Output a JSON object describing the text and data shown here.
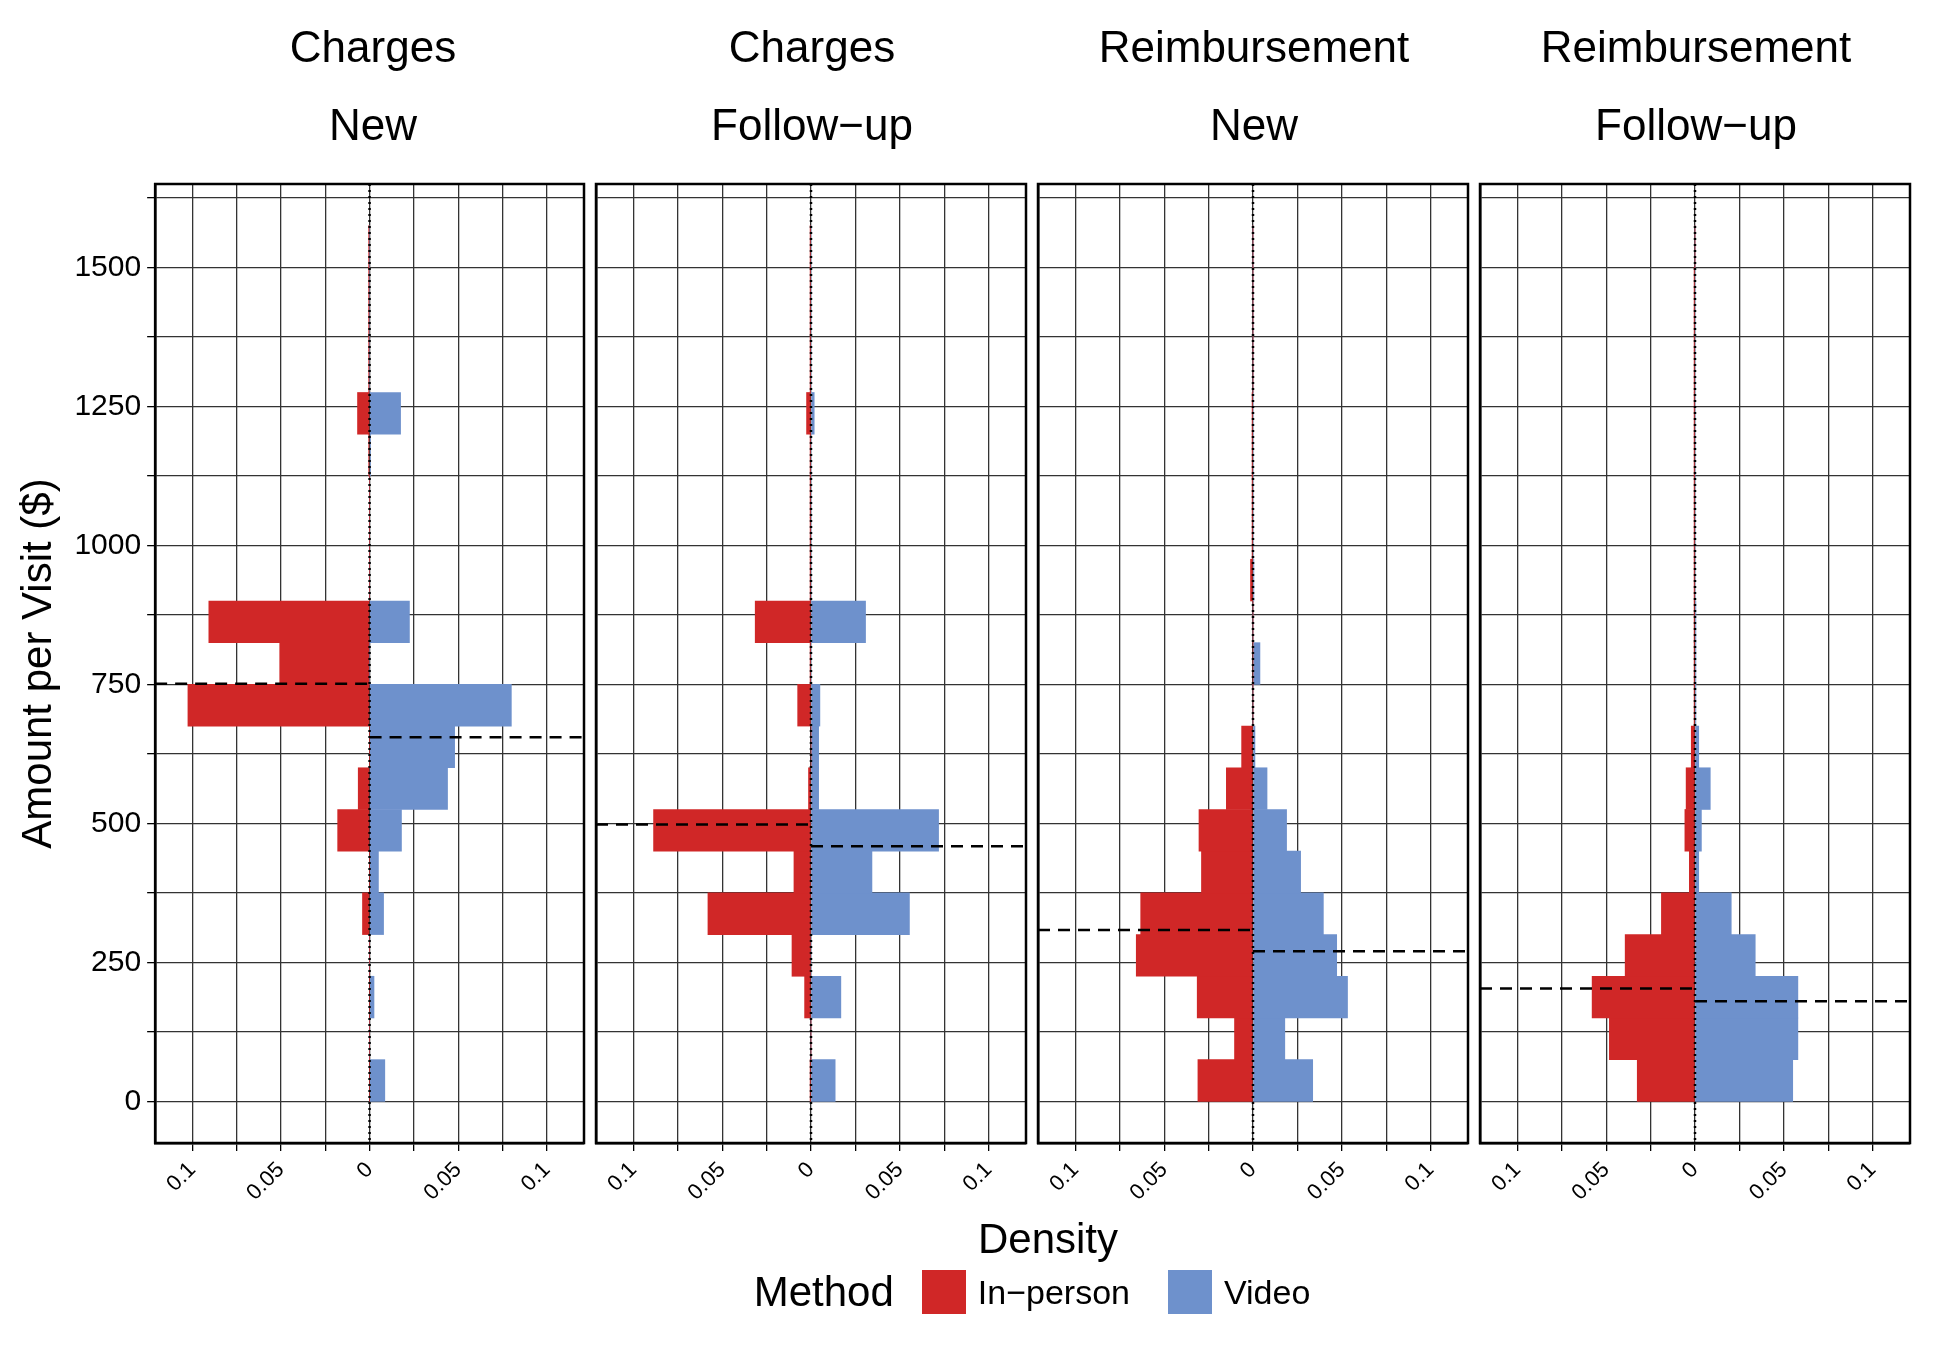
{
  "chart_data": [
    {
      "type": "histogram",
      "title": "Charges",
      "subtitle": "New",
      "orientation": "horizontal",
      "ylabel": "Amount per Visit ($)",
      "legend": "bottom",
      "legend_title": "Method",
      "grid": true,
      "bins": [
        0,
        75,
        150,
        225,
        300,
        375,
        450,
        525,
        600,
        675,
        750,
        825,
        900,
        975,
        1050,
        1125,
        1200,
        1275,
        1350,
        1425,
        1500,
        1575
      ],
      "xlim": [
        -0.121,
        0.121
      ],
      "xticks": [
        {
          "value": -0.1,
          "label": "0.1"
        },
        {
          "value": -0.075,
          "label": null
        },
        {
          "value": -0.05,
          "label": "0.05"
        },
        {
          "value": -0.025,
          "label": null
        },
        0,
        {
          "value": 0.025,
          "label": null
        },
        0.05,
        {
          "value": 0.075,
          "label": null
        },
        0.1
      ],
      "ylim": [
        -75,
        1650
      ],
      "yticks": [
        0,
        {
          "value": 125,
          "label": null
        },
        250,
        {
          "value": 375,
          "label": null
        },
        500,
        {
          "value": 625,
          "label": null
        },
        750,
        {
          "value": 875,
          "label": null
        },
        1000,
        {
          "value": 1125,
          "label": null
        },
        1250,
        {
          "value": 1375,
          "label": null
        },
        1500,
        {
          "value": 1625,
          "label": null
        }
      ],
      "series": [
        {
          "name": "In−person",
          "color": "#d02727",
          "values": [
            0,
            0,
            0,
            0,
            -0.004,
            0,
            -0.018,
            -0.0064,
            0,
            -0.1025,
            -0.0507,
            -0.0907,
            0,
            0,
            0,
            -0.0005,
            -0.0068,
            -0.0005,
            -0.0005,
            -0.0005,
            -0.0005
          ]
        },
        {
          "name": "Video",
          "color": "#6e91cc",
          "values": [
            0.0086,
            0,
            0.0025,
            0,
            0.0079,
            0.005,
            0.018,
            0.044,
            0.048,
            0.08,
            0,
            0.0225,
            0,
            0,
            0,
            0.0005,
            0.0175,
            0,
            0,
            0,
            0
          ]
        }
      ],
      "ref_lines": [
        {
          "axis": "y",
          "value": 751,
          "line_style": "dashed",
          "color": "#000000"
        },
        {
          "axis": "y",
          "value": 655,
          "line_style": "dashed",
          "color": "#000000"
        },
        {
          "axis": "x",
          "value": 0,
          "line_style": "dotted",
          "color": "#000000"
        }
      ]
    },
    {
      "type": "histogram",
      "title": "Charges",
      "subtitle": "Follow−up",
      "orientation": "horizontal",
      "xlabel": "Density",
      "grid": true,
      "tick_labels": "x",
      "bins": [
        0,
        75,
        150,
        225,
        300,
        375,
        450,
        525,
        600,
        675,
        750,
        825,
        900,
        975,
        1050,
        1125,
        1200,
        1275,
        1350,
        1425,
        1500,
        1575
      ],
      "xlim": [
        -0.121,
        0.121
      ],
      "xticks": [
        {
          "value": -0.1,
          "label": "0.1"
        },
        {
          "value": -0.075,
          "label": null
        },
        {
          "value": -0.05,
          "label": "0.05"
        },
        {
          "value": -0.025,
          "label": null
        },
        0,
        {
          "value": 0.025,
          "label": null
        },
        0.05,
        {
          "value": 0.075,
          "label": null
        },
        0.1
      ],
      "ylim": [
        -75,
        1650
      ],
      "yticks": [
        0,
        {
          "value": 125,
          "label": null
        },
        250,
        {
          "value": 375,
          "label": null
        },
        500,
        {
          "value": 625,
          "label": null
        },
        750,
        {
          "value": 875,
          "label": null
        },
        1000,
        {
          "value": 1125,
          "label": null
        },
        1250,
        {
          "value": 1375,
          "label": null
        },
        1500,
        {
          "value": 1625,
          "label": null
        }
      ],
      "series": [
        {
          "color": "#d02727",
          "values": [
            -0.0005,
            0,
            -0.0036,
            -0.0107,
            -0.058,
            -0.0096,
            -0.0886,
            -0.0014,
            0,
            -0.0075,
            -0.0005,
            -0.0314,
            -0.0005,
            -0.0005,
            -0.0005,
            -0.0005,
            -0.0025,
            -0.0005,
            -0.0005,
            -0.0005,
            -0.0005
          ]
        },
        {
          "color": "#6e91cc",
          "values": [
            0.0136,
            0,
            0.0168,
            0,
            0.0554,
            0.0343,
            0.0718,
            0.0043,
            0.0043,
            0.005,
            0,
            0.0307,
            0,
            0,
            0,
            0,
            0.0018,
            0,
            0,
            0,
            0
          ]
        }
      ],
      "ref_lines": [
        {
          "axis": "y",
          "value": 498,
          "line_style": "dashed",
          "color": "#000000"
        },
        {
          "axis": "y",
          "value": 459,
          "line_style": "dashed",
          "color": "#000000"
        },
        {
          "axis": "x",
          "value": 0,
          "line_style": "dotted",
          "color": "#000000"
        }
      ]
    },
    {
      "type": "histogram",
      "title": "Reimbursement",
      "subtitle": "New",
      "orientation": "horizontal",
      "grid": true,
      "tick_labels": "x",
      "bins": [
        0,
        75,
        150,
        225,
        300,
        375,
        450,
        525,
        600,
        675,
        750,
        825,
        900,
        975,
        1050,
        1125,
        1200,
        1275,
        1350,
        1425,
        1500,
        1575
      ],
      "xlim": [
        -0.121,
        0.121
      ],
      "xticks": [
        {
          "value": -0.1,
          "label": "0.1"
        },
        {
          "value": -0.075,
          "label": null
        },
        {
          "value": -0.05,
          "label": "0.05"
        },
        {
          "value": -0.025,
          "label": null
        },
        0,
        {
          "value": 0.025,
          "label": null
        },
        0.05,
        {
          "value": 0.075,
          "label": null
        },
        0.1
      ],
      "ylim": [
        -75,
        1650
      ],
      "yticks": [
        0,
        {
          "value": 125,
          "label": null
        },
        250,
        {
          "value": 375,
          "label": null
        },
        500,
        {
          "value": 625,
          "label": null
        },
        750,
        {
          "value": 875,
          "label": null
        },
        1000,
        {
          "value": 1125,
          "label": null
        },
        1250,
        {
          "value": 1375,
          "label": null
        },
        1500,
        {
          "value": 1625,
          "label": null
        }
      ],
      "series": [
        {
          "color": "#d02727",
          "values": [
            -0.031,
            -0.0104,
            -0.0314,
            -0.0657,
            -0.0632,
            -0.029,
            -0.0304,
            -0.015,
            -0.0064,
            0,
            0,
            0,
            -0.0014,
            -0.0005,
            -0.0005,
            -0.0005,
            -0.0005,
            0,
            0,
            0,
            0
          ]
        },
        {
          "color": "#6e91cc",
          "values": [
            0.0336,
            0.0179,
            0.0532,
            0.0471,
            0.0396,
            0.0268,
            0.0189,
            0.0079,
            0.0011,
            0,
            0.0039,
            0,
            0.0005,
            0,
            0,
            0,
            0,
            0,
            0,
            0,
            0
          ]
        }
      ],
      "ref_lines": [
        {
          "axis": "y",
          "value": 308,
          "line_style": "dashed",
          "color": "#000000"
        },
        {
          "axis": "y",
          "value": 270,
          "line_style": "dashed",
          "color": "#000000"
        },
        {
          "axis": "x",
          "value": 0,
          "line_style": "dotted",
          "color": "#000000"
        }
      ]
    },
    {
      "type": "histogram",
      "title": "Reimbursement",
      "subtitle": "Follow−up",
      "orientation": "horizontal",
      "grid": true,
      "tick_labels": "x",
      "bins": [
        0,
        75,
        150,
        225,
        300,
        375,
        450,
        525,
        600,
        675,
        750,
        825,
        900,
        975,
        1050,
        1125,
        1200,
        1275,
        1350,
        1425,
        1500,
        1575
      ],
      "xlim": [
        -0.121,
        0.121
      ],
      "xticks": [
        {
          "value": -0.1,
          "label": "0.1"
        },
        {
          "value": -0.075,
          "label": null
        },
        {
          "value": -0.05,
          "label": "0.05"
        },
        {
          "value": -0.025,
          "label": null
        },
        0,
        {
          "value": 0.025,
          "label": null
        },
        0.05,
        {
          "value": 0.075,
          "label": null
        },
        0.1
      ],
      "ylim": [
        -75,
        1650
      ],
      "yticks": [
        0,
        {
          "value": 125,
          "label": null
        },
        250,
        {
          "value": 375,
          "label": null
        },
        500,
        {
          "value": 625,
          "label": null
        },
        750,
        {
          "value": 875,
          "label": null
        },
        1000,
        {
          "value": 1125,
          "label": null
        },
        1250,
        {
          "value": 1375,
          "label": null
        },
        1500,
        {
          "value": 1625,
          "label": null
        }
      ],
      "series": [
        {
          "color": "#d02727",
          "values": [
            -0.0325,
            -0.0482,
            -0.0579,
            -0.0393,
            -0.0189,
            -0.0032,
            -0.0057,
            -0.005,
            -0.0021,
            -0.0005,
            -0.0005,
            -0.0005,
            -0.0005,
            -0.0005,
            -0.0005,
            -0.0005,
            -0.0005,
            -0.0005,
            -0.0005,
            -0.0005,
            0
          ]
        },
        {
          "color": "#6e91cc",
          "values": [
            0.055,
            0.0579,
            0.0579,
            0.0339,
            0.0204,
            0.0021,
            0.0036,
            0.0086,
            0.0021,
            0.0005,
            0.0005,
            0.0005,
            0,
            0,
            0,
            0,
            0,
            0,
            0,
            0,
            0
          ]
        }
      ],
      "ref_lines": [
        {
          "axis": "y",
          "value": 203,
          "line_style": "dashed",
          "color": "#000000"
        },
        {
          "axis": "y",
          "value": 180,
          "line_style": "dashed",
          "color": "#000000"
        },
        {
          "axis": "x",
          "value": 0,
          "line_style": "dotted",
          "color": "#000000"
        }
      ]
    }
  ]
}
